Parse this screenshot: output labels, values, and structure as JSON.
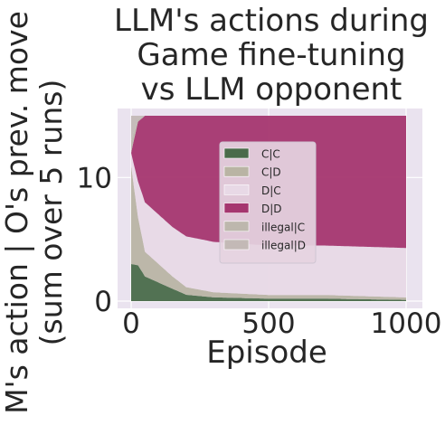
{
  "chart_data": {
    "type": "area",
    "title": [
      "LLM's actions during",
      "Game fine-tuning",
      "vs LLM opponent"
    ],
    "xlabel": "Episode",
    "ylabel": [
      "M's action | O's prev. move",
      "(sum over 5 runs)"
    ],
    "xlim": [
      0,
      1000
    ],
    "ylim": [
      0,
      15
    ],
    "x_ticks": [
      0,
      500,
      1000
    ],
    "x_tick_labels": [
      "0",
      "500",
      "1000"
    ],
    "y_ticks": [
      0,
      10
    ],
    "y_tick_labels": [
      "0",
      "10"
    ],
    "grid": true,
    "stacked": true,
    "legend_position": "center",
    "series": [
      {
        "name": "C|C",
        "color": "#4a6b4a",
        "description": "dense near 0 to ~200 episodes, then sparse",
        "approx_values": {
          "x": [
            0,
            25,
            50,
            100,
            150,
            200,
            300,
            500,
            700,
            1000
          ],
          "y": [
            3,
            3,
            2,
            1.5,
            1,
            0.5,
            0.3,
            0.2,
            0.2,
            0.1
          ]
        }
      },
      {
        "name": "C|D",
        "color": "#b9b4a4",
        "approx_values": {
          "x": [
            0,
            25,
            50,
            100,
            150,
            200,
            300,
            500,
            700,
            1000
          ],
          "y": [
            8,
            4,
            2,
            1.5,
            1,
            0.6,
            0.4,
            0.3,
            0.3,
            0.2
          ]
        }
      },
      {
        "name": "D|C",
        "color": "#e8d9e6",
        "approx_values": {
          "x": [
            0,
            25,
            50,
            100,
            150,
            200,
            300,
            500,
            700,
            1000
          ],
          "y": [
            1,
            3,
            4,
            4,
            4,
            4,
            4,
            4,
            4,
            4
          ]
        }
      },
      {
        "name": "D|D",
        "color": "#a5366f",
        "approx_values": {
          "x": [
            0,
            25,
            50,
            100,
            150,
            200,
            300,
            500,
            700,
            1000
          ],
          "y": [
            0,
            5,
            7,
            8,
            9,
            9.5,
            10,
            10.5,
            10.5,
            10.7
          ]
        }
      },
      {
        "name": "illegal|C",
        "color": "#bdb7ad",
        "approx_values": {
          "x": [
            0,
            25,
            50,
            100,
            1000
          ],
          "y": [
            1,
            0.2,
            0,
            0,
            0
          ]
        }
      },
      {
        "name": "illegal|D",
        "color": "#c3b9b6",
        "approx_values": {
          "x": [
            0,
            25,
            50,
            100,
            1000
          ],
          "y": [
            2,
            0.3,
            0,
            0,
            0
          ]
        }
      }
    ]
  }
}
